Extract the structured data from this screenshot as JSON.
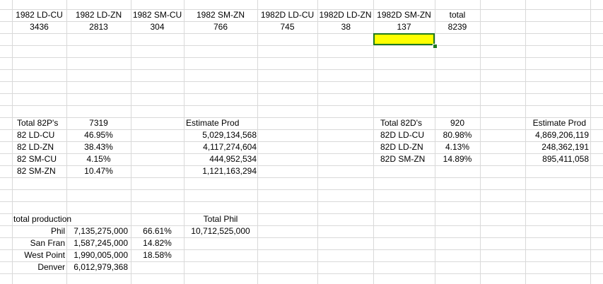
{
  "header_row": {
    "c1": "1982 LD-CU",
    "c2": "1982 LD-ZN",
    "c3": "1982 SM-CU",
    "c4": "1982 SM-ZN",
    "c5": "1982D LD-CU",
    "c6": "1982D LD-ZN",
    "c7": "1982D SM-ZN",
    "c8": "total"
  },
  "counts_row": {
    "c1": "3436",
    "c2": "2813",
    "c3": "304",
    "c4": "766",
    "c5": "745",
    "c6": "38",
    "c7": "137",
    "c8": "8239"
  },
  "p_block": {
    "total_label": "Total 82P's",
    "total_value": "7319",
    "rows": [
      {
        "label": "82 LD-CU",
        "pct": "46.95%"
      },
      {
        "label": "82 LD-ZN",
        "pct": "38.43%"
      },
      {
        "label": "82 SM-CU",
        "pct": "4.15%"
      },
      {
        "label": "82 SM-ZN",
        "pct": "10.47%"
      }
    ],
    "estimate_label": "Estimate Prod",
    "estimates": [
      "5,029,134,568",
      "4,117,274,604",
      "444,952,534",
      "1,121,163,294"
    ]
  },
  "d_block": {
    "total_label": "Total 82D's",
    "total_value": "920",
    "rows": [
      {
        "label": "82D LD-CU",
        "pct": "80.98%"
      },
      {
        "label": "82D LD-ZN",
        "pct": "4.13%"
      },
      {
        "label": "82D SM-ZN",
        "pct": "14.89%"
      }
    ],
    "estimate_label": "Estimate Prod",
    "estimates": [
      "4,869,206,119",
      "248,362,191",
      "895,411,058"
    ]
  },
  "production": {
    "label": "total production",
    "rows": [
      {
        "mint": "Phil",
        "amount": "7,135,275,000",
        "pct": "66.61%"
      },
      {
        "mint": "San Fran",
        "amount": "1,587,245,000",
        "pct": "14.82%"
      },
      {
        "mint": "West Point",
        "amount": "1,990,005,000",
        "pct": "18.58%"
      },
      {
        "mint": "Denver",
        "amount": "6,012,979,368",
        "pct": ""
      }
    ],
    "total_phil_label": "Total Phil",
    "total_phil_value": "10,712,525,000"
  },
  "selection": {
    "fill_color": "#ffff00",
    "border_color": "#1f7a1f"
  }
}
